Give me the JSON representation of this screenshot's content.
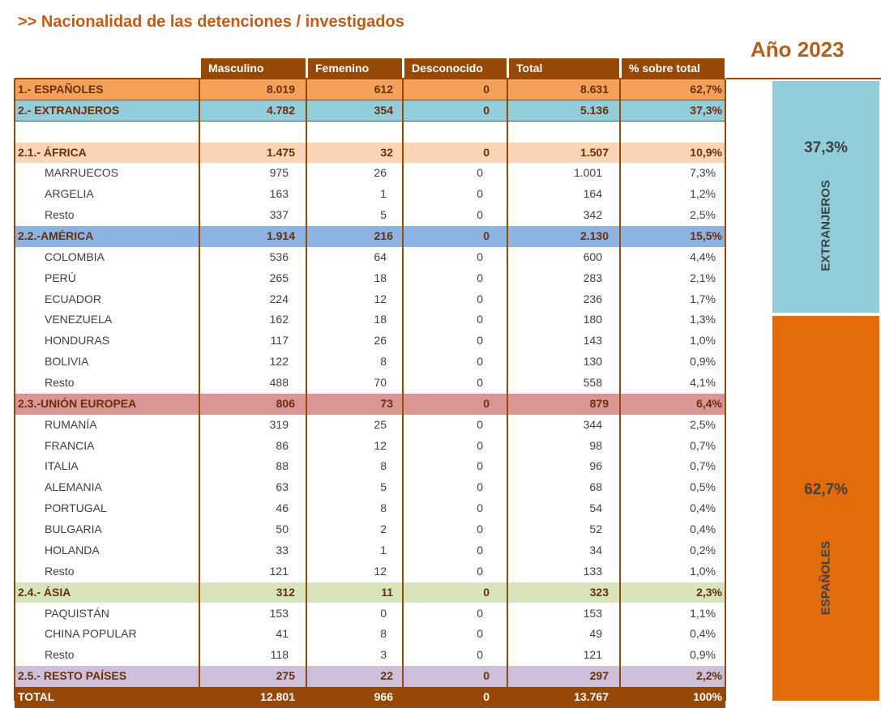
{
  "header": {
    "title": ">> Nacionalidad de las detenciones / investigados",
    "year": "Año 2023"
  },
  "table": {
    "columns": [
      "Masculino",
      "Femenino",
      "Desconocido",
      "Total",
      "% sobre total"
    ],
    "rows": [
      [
        "1.- ESPAÑOLES",
        "8.019",
        "612",
        "0",
        "8.631",
        "62,7%"
      ],
      [
        "2.- EXTRANJEROS",
        "4.782",
        "354",
        "0",
        "5.136",
        "37,3%"
      ],
      [
        "2.1.- ÁFRICA",
        "1.475",
        "32",
        "0",
        "1.507",
        "10,9%"
      ],
      [
        "MARRUECOS",
        "975",
        "26",
        "0",
        "1.001",
        "7,3%"
      ],
      [
        "ARGELIA",
        "163",
        "1",
        "0",
        "164",
        "1,2%"
      ],
      [
        "Resto",
        "337",
        "5",
        "0",
        "342",
        "2,5%"
      ],
      [
        "2.2.-AMÉRICA",
        "1.914",
        "216",
        "0",
        "2.130",
        "15,5%"
      ],
      [
        "COLOMBIA",
        "536",
        "64",
        "0",
        "600",
        "4,4%"
      ],
      [
        "PERÚ",
        "265",
        "18",
        "0",
        "283",
        "2,1%"
      ],
      [
        "ECUADOR",
        "224",
        "12",
        "0",
        "236",
        "1,7%"
      ],
      [
        "VENEZUELA",
        "162",
        "18",
        "0",
        "180",
        "1,3%"
      ],
      [
        "HONDURAS",
        "117",
        "26",
        "0",
        "143",
        "1,0%"
      ],
      [
        "BOLIVIA",
        "122",
        "8",
        "0",
        "130",
        "0,9%"
      ],
      [
        "Resto",
        "488",
        "70",
        "0",
        "558",
        "4,1%"
      ],
      [
        "2.3.-UNIÓN EUROPEA",
        "806",
        "73",
        "0",
        "879",
        "6,4%"
      ],
      [
        "RUMANÍA",
        "319",
        "25",
        "0",
        "344",
        "2,5%"
      ],
      [
        "FRANCIA",
        "86",
        "12",
        "0",
        "98",
        "0,7%"
      ],
      [
        "ITALIA",
        "88",
        "8",
        "0",
        "96",
        "0,7%"
      ],
      [
        "ALEMANIA",
        "63",
        "5",
        "0",
        "68",
        "0,5%"
      ],
      [
        "PORTUGAL",
        "46",
        "8",
        "0",
        "54",
        "0,4%"
      ],
      [
        "BULGARIA",
        "50",
        "2",
        "0",
        "52",
        "0,4%"
      ],
      [
        "HOLANDA",
        "33",
        "1",
        "0",
        "34",
        "0,2%"
      ],
      [
        "Resto",
        "121",
        "12",
        "0",
        "133",
        "1,0%"
      ],
      [
        "2.4.- ÁSIA",
        "312",
        "11",
        "0",
        "323",
        "2,3%"
      ],
      [
        "PAQUISTÁN",
        "153",
        "0",
        "0",
        "153",
        "1,1%"
      ],
      [
        "CHINA POPULAR",
        "41",
        "8",
        "0",
        "49",
        "0,4%"
      ],
      [
        "Resto",
        "118",
        "3",
        "0",
        "121",
        "0,9%"
      ],
      [
        "2.5.- RESTO PAÍSES",
        "275",
        "22",
        "0",
        "297",
        "2,2%"
      ]
    ],
    "total": [
      "TOTAL",
      "12.801",
      "966",
      "0",
      "13.767",
      "100%"
    ]
  },
  "side": {
    "extranjeros": {
      "value": "37,3%",
      "label": "EXTRANJEROS"
    },
    "espanoles": {
      "value": "62,7%",
      "label": "ESPAÑOLES"
    }
  }
}
